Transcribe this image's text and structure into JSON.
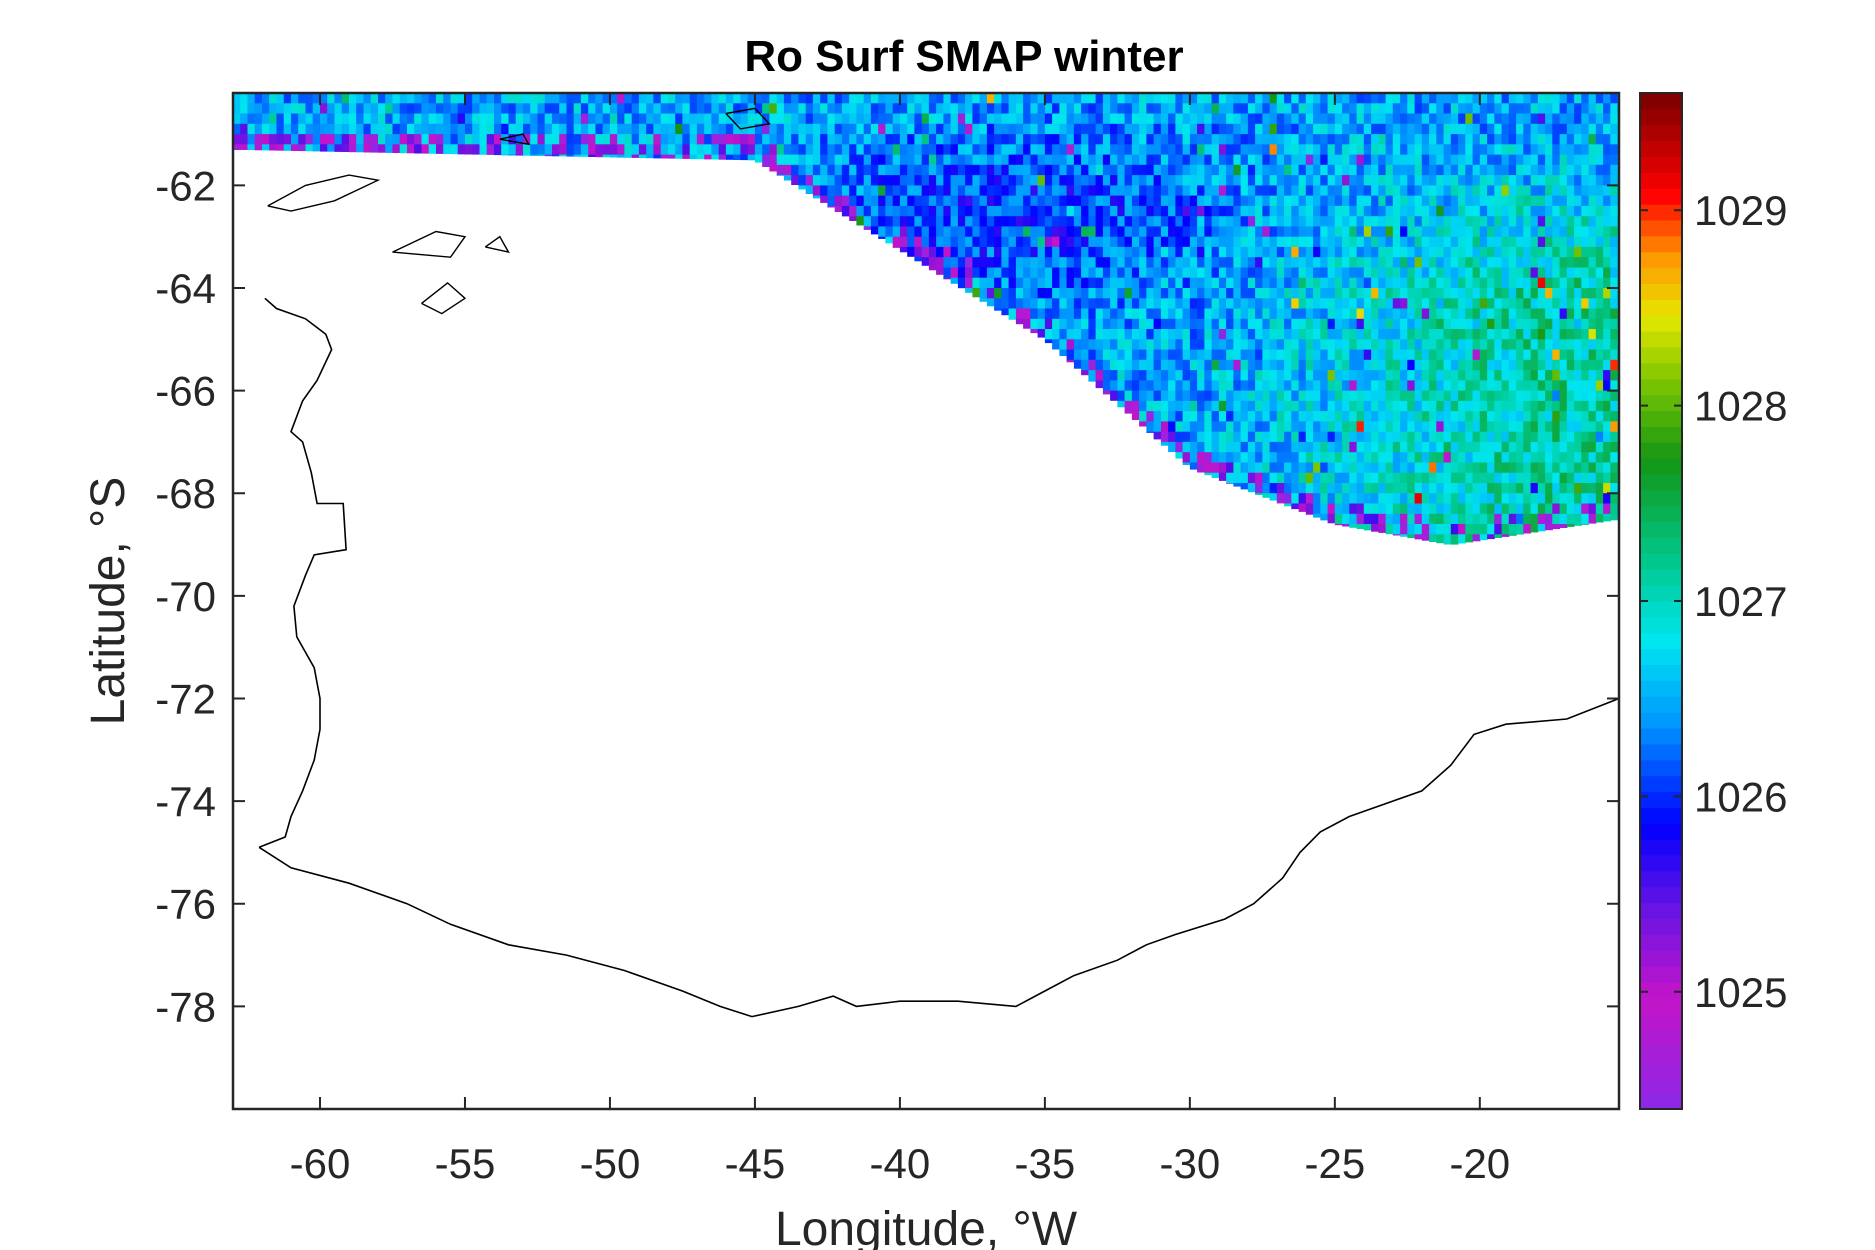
{
  "chart_data": {
    "type": "heatmap",
    "title": "Ro Surf SMAP winter",
    "xlabel": "Longitude, °W",
    "ylabel": "Latitude, °S",
    "xlim": [
      -63,
      -15.2
    ],
    "ylim": [
      -80,
      -60.2
    ],
    "xticks": [
      -60,
      -55,
      -50,
      -45,
      -40,
      -35,
      -30,
      -25,
      -20
    ],
    "xtick_labels": [
      "-60",
      "-55",
      "-50",
      "-45",
      "-40",
      "-35",
      "-30",
      "-25",
      "-20"
    ],
    "yticks": [
      -62,
      -64,
      -66,
      -68,
      -70,
      -72,
      -74,
      -76,
      -78
    ],
    "ytick_labels": [
      "-62",
      "-64",
      "-66",
      "-68",
      "-70",
      "-72",
      "-74",
      "-76",
      "-78"
    ],
    "colorbar": {
      "range": [
        1024.4,
        1029.6
      ],
      "ticks": [
        1025,
        1026,
        1027,
        1028,
        1029
      ],
      "tick_labels": [
        "1025",
        "1026",
        "1027",
        "1028",
        "1029"
      ],
      "colormap": "jet-like (violet-blue-cyan-green-yellow-red)"
    },
    "field_description_values": {
      "north_region_mean": 1026.5,
      "east_region_mean": 1027.1,
      "blue_patch_mean": 1026.0,
      "data_southern_edge_lat": [
        [
          -62.5,
          -61.3
        ],
        [
          -45,
          -61.5
        ],
        [
          -35,
          -65
        ],
        [
          -30,
          -67.5
        ],
        [
          -25,
          -68.6
        ],
        [
          -21,
          -69.0
        ],
        [
          -15.2,
          -68.5
        ]
      ]
    },
    "coastline": [
      [
        -62.1,
        -74.9
      ],
      [
        -61.0,
        -75.3
      ],
      [
        -59.0,
        -75.6
      ],
      [
        -57.0,
        -76.0
      ],
      [
        -55.5,
        -76.4
      ],
      [
        -53.5,
        -76.8
      ],
      [
        -51.5,
        -77.0
      ],
      [
        -49.5,
        -77.3
      ],
      [
        -47.5,
        -77.7
      ],
      [
        -46.2,
        -78.0
      ],
      [
        -45.1,
        -78.2
      ],
      [
        -43.5,
        -78.0
      ],
      [
        -42.3,
        -77.8
      ],
      [
        -41.5,
        -78.0
      ],
      [
        -40.0,
        -77.9
      ],
      [
        -38.0,
        -77.9
      ],
      [
        -36.0,
        -78.0
      ],
      [
        -35.0,
        -77.7
      ],
      [
        -34.0,
        -77.4
      ],
      [
        -32.5,
        -77.1
      ],
      [
        -31.5,
        -76.8
      ],
      [
        -30.5,
        -76.6
      ],
      [
        -28.8,
        -76.3
      ],
      [
        -27.8,
        -76.0
      ],
      [
        -26.8,
        -75.5
      ],
      [
        -26.2,
        -75.0
      ],
      [
        -25.5,
        -74.6
      ],
      [
        -24.5,
        -74.3
      ],
      [
        -23.0,
        -74.0
      ],
      [
        -22.0,
        -73.8
      ],
      [
        -21.0,
        -73.3
      ],
      [
        -20.2,
        -72.7
      ],
      [
        -19.1,
        -72.5
      ],
      [
        -17.0,
        -72.4
      ],
      [
        -15.2,
        -72.0
      ]
    ],
    "peninsula": [
      [
        -62.1,
        -74.9
      ],
      [
        -61.2,
        -74.7
      ],
      [
        -61.0,
        -74.3
      ],
      [
        -60.6,
        -73.8
      ],
      [
        -60.2,
        -73.2
      ],
      [
        -60.0,
        -72.6
      ],
      [
        -60.0,
        -72.0
      ],
      [
        -60.2,
        -71.4
      ],
      [
        -60.8,
        -70.8
      ],
      [
        -60.9,
        -70.2
      ],
      [
        -60.5,
        -69.6
      ],
      [
        -60.2,
        -69.2
      ],
      [
        -59.1,
        -69.1
      ],
      [
        -59.2,
        -68.2
      ],
      [
        -60.1,
        -68.2
      ],
      [
        -60.3,
        -67.6
      ],
      [
        -60.6,
        -67.0
      ],
      [
        -61.0,
        -66.8
      ],
      [
        -60.6,
        -66.2
      ],
      [
        -60.1,
        -65.8
      ],
      [
        -59.6,
        -65.2
      ],
      [
        -59.8,
        -64.9
      ],
      [
        -60.5,
        -64.6
      ],
      [
        -61.5,
        -64.4
      ],
      [
        -61.9,
        -64.2
      ]
    ],
    "islands": [
      [
        [
          -61.8,
          -62.4
        ],
        [
          -60.5,
          -62.0
        ],
        [
          -59.0,
          -61.8
        ],
        [
          -58.0,
          -61.9
        ],
        [
          -59.5,
          -62.3
        ],
        [
          -61.0,
          -62.5
        ],
        [
          -61.8,
          -62.4
        ]
      ],
      [
        [
          -57.5,
          -63.3
        ],
        [
          -56.0,
          -62.9
        ],
        [
          -55.0,
          -63.0
        ],
        [
          -55.5,
          -63.4
        ],
        [
          -57.5,
          -63.3
        ]
      ],
      [
        [
          -56.5,
          -64.3
        ],
        [
          -55.6,
          -63.9
        ],
        [
          -55.0,
          -64.2
        ],
        [
          -55.8,
          -64.5
        ],
        [
          -56.5,
          -64.3
        ]
      ],
      [
        [
          -54.3,
          -63.2
        ],
        [
          -53.8,
          -63.0
        ],
        [
          -53.5,
          -63.3
        ],
        [
          -54.3,
          -63.2
        ]
      ],
      [
        [
          -46.0,
          -60.6
        ],
        [
          -45.0,
          -60.5
        ],
        [
          -44.5,
          -60.8
        ],
        [
          -45.5,
          -60.9
        ],
        [
          -46.0,
          -60.6
        ]
      ],
      [
        [
          -53.8,
          -61.1
        ],
        [
          -53.0,
          -61.0
        ],
        [
          -52.8,
          -61.2
        ],
        [
          -53.8,
          -61.1
        ]
      ]
    ]
  }
}
